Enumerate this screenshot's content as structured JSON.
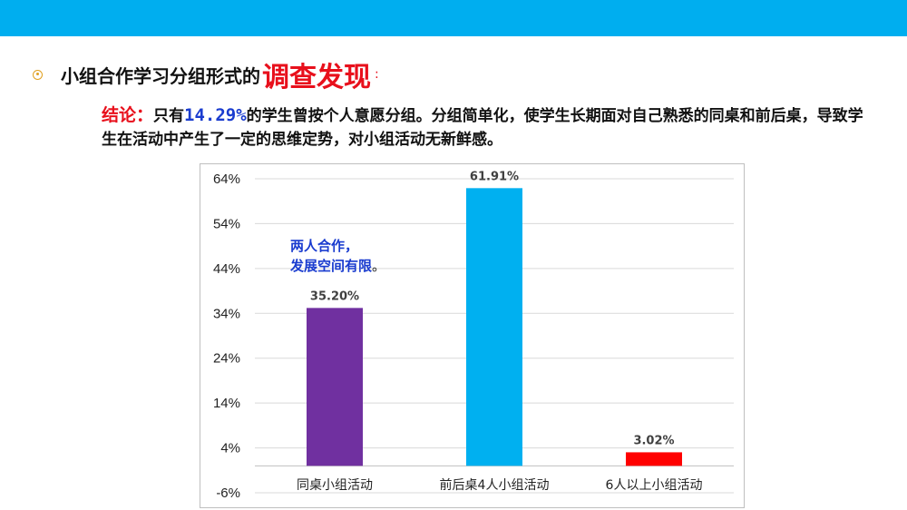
{
  "heading": {
    "prefix": "小组合作学习分组形式的",
    "emphasis": "调查发现",
    "colon": ":"
  },
  "conclusion": {
    "label": "结论：",
    "text_before": "只有",
    "percent": "14.29%",
    "text_after": "的学生曾按个人意愿分组。分组简单化，使学生长期面对自己熟悉的同桌和前后桌，导致学生在活动中产生了一定的思维定势，对小组活动无新鲜感。"
  },
  "annotation": {
    "line1": "两人合作，",
    "line2": "发展空间有限",
    "period": "。"
  },
  "chart_data": {
    "type": "bar",
    "categories": [
      "同桌小组活动",
      "前后桌4人小组活动",
      "6人以上小组活动"
    ],
    "values": [
      35.2,
      61.91,
      3.02
    ],
    "data_labels": [
      "35.20%",
      "61.91%",
      "3.02%"
    ],
    "bar_colors": [
      "#7030a0",
      "#00b0f0",
      "#ff0000"
    ],
    "yticks": [
      64,
      54,
      44,
      34,
      24,
      14,
      4,
      -6
    ],
    "ytick_labels": [
      "64%",
      "54%",
      "44%",
      "34%",
      "24%",
      "14%",
      "4%",
      "-6%"
    ],
    "ylim": [
      -6,
      64
    ],
    "grid": true,
    "title": "",
    "xlabel": "",
    "ylabel": ""
  }
}
